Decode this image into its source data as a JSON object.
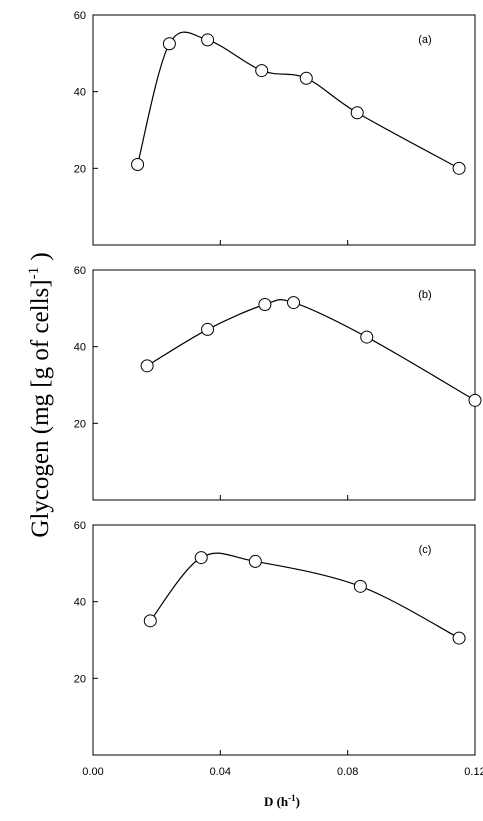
{
  "figure": {
    "ylabel_main": "Glycogen (mg ",
    "ylabel_inner": "g of cells",
    "ylabel_sup": "-1",
    "ylabel_close": " )",
    "xlabel_main": "D (h",
    "xlabel_sup": "-1",
    "xlabel_close": ")"
  },
  "chart_data": [
    {
      "type": "line",
      "panel_label": "(a)",
      "x": [
        0.014,
        0.024,
        0.036,
        0.053,
        0.067,
        0.083,
        0.115
      ],
      "y": [
        21,
        52.5,
        53.5,
        45.5,
        43.5,
        34.5,
        20
      ],
      "xlim": [
        0.0,
        0.12
      ],
      "ylim": [
        0,
        60
      ],
      "yticks": [
        20,
        40,
        60
      ],
      "xticks": [],
      "marker": "open-circle",
      "grid": false
    },
    {
      "type": "line",
      "panel_label": "(b)",
      "x": [
        0.017,
        0.036,
        0.054,
        0.063,
        0.086,
        0.12
      ],
      "y": [
        35,
        44.5,
        51,
        51.5,
        42.5,
        26
      ],
      "xlim": [
        0.0,
        0.12
      ],
      "ylim": [
        0,
        60
      ],
      "yticks": [
        20,
        40,
        60
      ],
      "xticks": [],
      "marker": "open-circle",
      "grid": false
    },
    {
      "type": "line",
      "panel_label": "(c)",
      "x": [
        0.018,
        0.034,
        0.051,
        0.084,
        0.115
      ],
      "y": [
        35,
        51.5,
        50.5,
        44,
        30.5
      ],
      "xlim": [
        0.0,
        0.12
      ],
      "ylim": [
        0,
        60
      ],
      "yticks": [
        20,
        40,
        60
      ],
      "xticks": [
        0.0,
        0.04,
        0.08,
        0.12
      ],
      "xtick_labels": [
        "0.00",
        "0.04",
        "0.08",
        "0.12"
      ],
      "marker": "open-circle",
      "grid": false
    }
  ]
}
